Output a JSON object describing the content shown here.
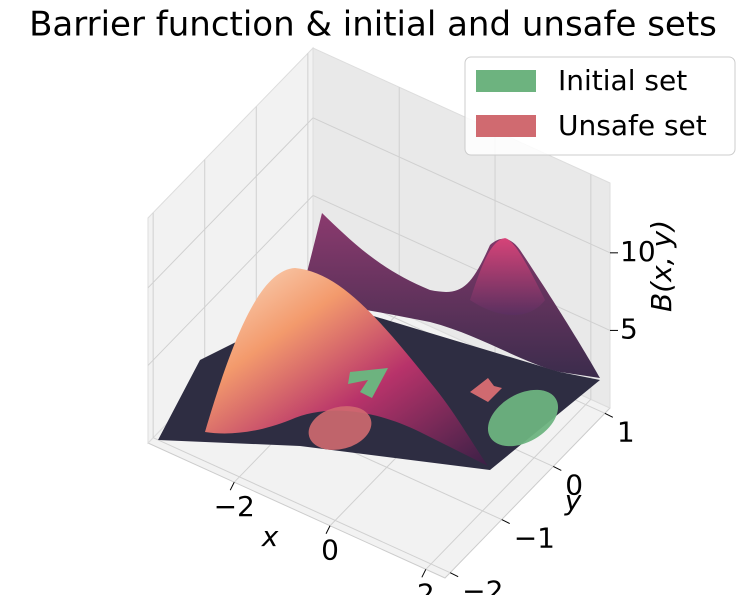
{
  "chart_data": {
    "type": "surface",
    "title": "Barrier function & initial and unsafe sets",
    "xlabel": "x",
    "ylabel": "y",
    "zlabel": "B(x, y)",
    "xlim": [
      -3.8,
      2.4
    ],
    "ylim": [
      -2.1,
      1.1
    ],
    "zlim": [
      0,
      14.5
    ],
    "xticks": [
      {
        "value": -2,
        "label": "−2"
      },
      0,
      2
    ],
    "yticks": [
      {
        "value": -2,
        "label": "−2"
      },
      {
        "value": -1,
        "label": "−1"
      },
      0,
      1
    ],
    "zticks": [
      5,
      10
    ],
    "grid": true,
    "legend": {
      "position": "upper right",
      "entries": [
        {
          "name": "Initial set",
          "color": "#6db37f"
        },
        {
          "name": "Unsafe set",
          "color": "#d06a70"
        }
      ]
    }
  }
}
